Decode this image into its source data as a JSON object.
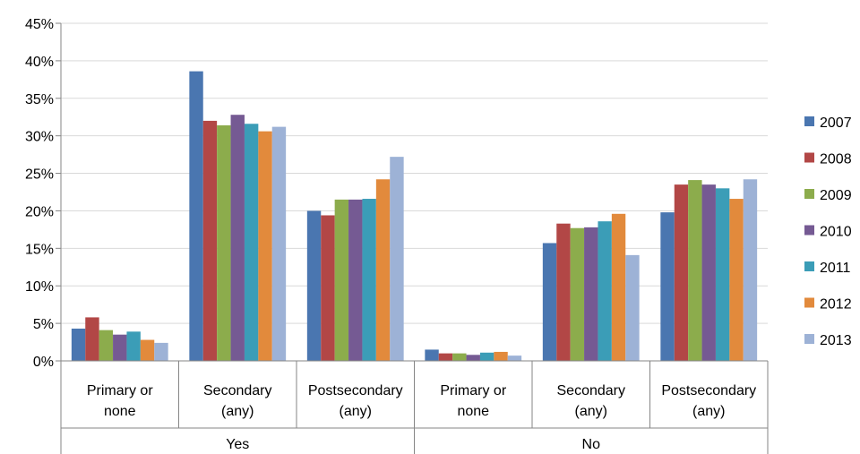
{
  "chart_data": {
    "type": "bar",
    "groups": [
      {
        "label": "Yes",
        "categories": [
          "Primary or none",
          "Secondary (any)",
          "Postsecondary (any)"
        ]
      },
      {
        "label": "No",
        "categories": [
          "Primary or none",
          "Secondary (any)",
          "Postsecondary (any)"
        ]
      }
    ],
    "category_label_lines": [
      [
        "Primary or",
        "none"
      ],
      [
        "Secondary",
        "(any)"
      ],
      [
        "Postsecondary",
        "(any)"
      ],
      [
        "Primary or",
        "none"
      ],
      [
        "Secondary",
        "(any)"
      ],
      [
        "Postsecondary",
        "(any)"
      ]
    ],
    "series": [
      {
        "name": "2007",
        "color": "#4A76B0",
        "values": [
          4.3,
          38.6,
          20.0,
          1.5,
          15.7,
          19.8
        ]
      },
      {
        "name": "2008",
        "color": "#B24746",
        "values": [
          5.8,
          32.0,
          19.4,
          1.0,
          18.3,
          23.5
        ]
      },
      {
        "name": "2009",
        "color": "#8CAC4C",
        "values": [
          4.1,
          31.4,
          21.5,
          1.0,
          17.7,
          24.1
        ]
      },
      {
        "name": "2010",
        "color": "#755A93",
        "values": [
          3.5,
          32.8,
          21.5,
          0.8,
          17.8,
          23.5
        ]
      },
      {
        "name": "2011",
        "color": "#3B9DB7",
        "values": [
          3.9,
          31.6,
          21.6,
          1.1,
          18.6,
          23.0
        ]
      },
      {
        "name": "2012",
        "color": "#E28A3C",
        "values": [
          2.8,
          30.6,
          24.2,
          1.2,
          19.6,
          21.6
        ]
      },
      {
        "name": "2013",
        "color": "#9DB2D6",
        "values": [
          2.4,
          31.2,
          27.2,
          0.7,
          14.1,
          24.2
        ]
      }
    ],
    "yticks": [
      "0%",
      "5%",
      "10%",
      "15%",
      "20%",
      "25%",
      "30%",
      "35%",
      "40%",
      "45%"
    ],
    "ylim": [
      0,
      45
    ],
    "grid": true,
    "legend_position": "right"
  }
}
